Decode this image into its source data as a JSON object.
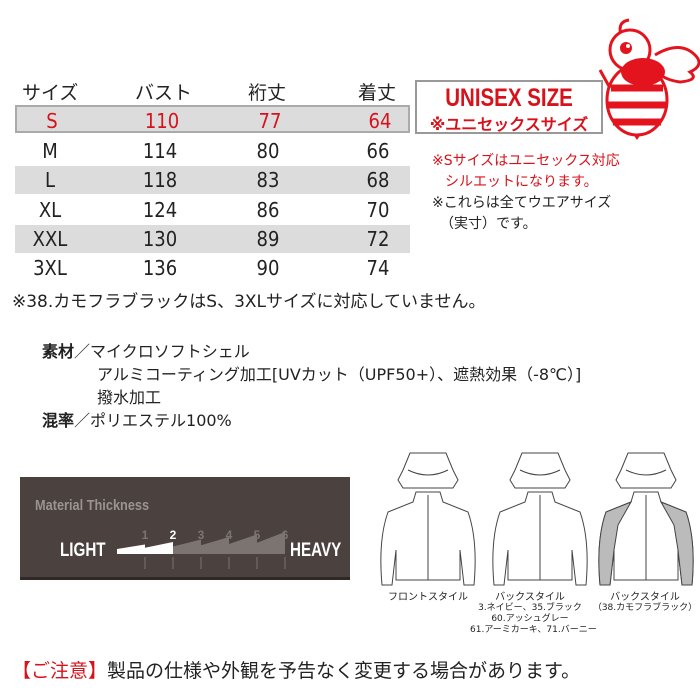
{
  "size_table": {
    "headers": [
      "サイズ",
      "バスト",
      "裄丈",
      "着丈"
    ],
    "rows": [
      [
        "S",
        "110",
        "77",
        "64"
      ],
      [
        "M",
        "114",
        "80",
        "66"
      ],
      [
        "L",
        "118",
        "83",
        "68"
      ],
      [
        "XL",
        "124",
        "86",
        "70"
      ],
      [
        "XXL",
        "130",
        "89",
        "72"
      ],
      [
        "3XL",
        "136",
        "90",
        "74"
      ]
    ],
    "highlight_row": "S",
    "note": "※38.カモフラブラックはS、3XLサイズに対応していません。"
  },
  "unisex_badge": {
    "title": "UNISEX SIZE",
    "subtitle": "※ユニセックスサイズ"
  },
  "notes": {
    "red_line1": "※Sサイズはユニセックス対応",
    "red_line2": "シルエットになります。",
    "line3": "※これらは全てウエアサイズ",
    "line4": "（実寸）です。"
  },
  "material": {
    "label1": "素材",
    "value1": "／マイクロソフトシェル",
    "value2": "アルミコーティング加工[UVカット（UPF50+）、遮熱効果（-8℃）]",
    "value3": "撥水加工",
    "label2": "混率",
    "value4": "／ポリエステル100%"
  },
  "thickness": {
    "title": "Material Thickness",
    "left_label": "LIGHT",
    "right_label": "HEAVY",
    "scale": [
      "1",
      "2",
      "3",
      "4",
      "5",
      "6"
    ],
    "level": 2
  },
  "illustrations": {
    "front_caption": "フロントスタイル",
    "back_caption": "バックスタイル",
    "back_colors_1": "3.ネイビー、35.ブラック",
    "back_colors_2": "60.アッシュグレー",
    "back_colors_3": "61.アーミカーキ、71.バーニー",
    "back2_caption": "バックスタイル",
    "back2_colors": "（38.カモフラブラック）"
  },
  "logo": {
    "name": "bee-mascot",
    "color": "#e3141d"
  },
  "footer": "【ご注意】製品の仕様や外観を予告なく変更する場合があります。",
  "colors": {
    "accent": "#d7121b",
    "panel": "#4b423f"
  }
}
